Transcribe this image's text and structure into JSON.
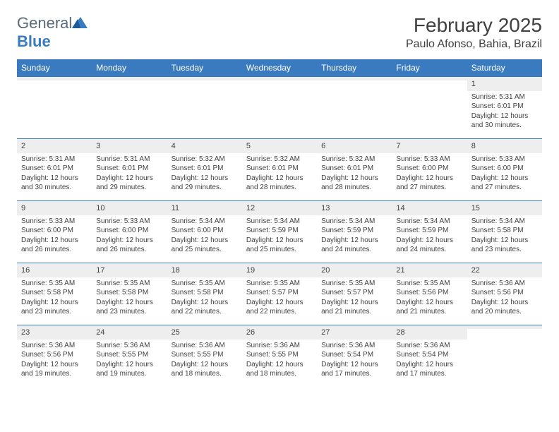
{
  "logo": {
    "text_general": "General",
    "text_blue": "Blue"
  },
  "header": {
    "title": "February 2025",
    "location": "Paulo Afonso, Bahia, Brazil"
  },
  "colors": {
    "brand_blue": "#3a7bbf",
    "header_text": "#ffffff",
    "daynum_bg": "#eeeeee",
    "text": "#404040",
    "logo_gray": "#5a6b7a",
    "background": "#ffffff"
  },
  "fonts": {
    "title_size": 28,
    "location_size": 16,
    "header_size": 12,
    "daynum_size": 11,
    "body_size": 10
  },
  "day_headers": [
    "Sunday",
    "Monday",
    "Tuesday",
    "Wednesday",
    "Thursday",
    "Friday",
    "Saturday"
  ],
  "weeks": [
    [
      {
        "n": "",
        "sr": "",
        "ss": "",
        "dl": ""
      },
      {
        "n": "",
        "sr": "",
        "ss": "",
        "dl": ""
      },
      {
        "n": "",
        "sr": "",
        "ss": "",
        "dl": ""
      },
      {
        "n": "",
        "sr": "",
        "ss": "",
        "dl": ""
      },
      {
        "n": "",
        "sr": "",
        "ss": "",
        "dl": ""
      },
      {
        "n": "",
        "sr": "",
        "ss": "",
        "dl": ""
      },
      {
        "n": "1",
        "sr": "Sunrise: 5:31 AM",
        "ss": "Sunset: 6:01 PM",
        "dl": "Daylight: 12 hours and 30 minutes."
      }
    ],
    [
      {
        "n": "2",
        "sr": "Sunrise: 5:31 AM",
        "ss": "Sunset: 6:01 PM",
        "dl": "Daylight: 12 hours and 30 minutes."
      },
      {
        "n": "3",
        "sr": "Sunrise: 5:31 AM",
        "ss": "Sunset: 6:01 PM",
        "dl": "Daylight: 12 hours and 29 minutes."
      },
      {
        "n": "4",
        "sr": "Sunrise: 5:32 AM",
        "ss": "Sunset: 6:01 PM",
        "dl": "Daylight: 12 hours and 29 minutes."
      },
      {
        "n": "5",
        "sr": "Sunrise: 5:32 AM",
        "ss": "Sunset: 6:01 PM",
        "dl": "Daylight: 12 hours and 28 minutes."
      },
      {
        "n": "6",
        "sr": "Sunrise: 5:32 AM",
        "ss": "Sunset: 6:01 PM",
        "dl": "Daylight: 12 hours and 28 minutes."
      },
      {
        "n": "7",
        "sr": "Sunrise: 5:33 AM",
        "ss": "Sunset: 6:00 PM",
        "dl": "Daylight: 12 hours and 27 minutes."
      },
      {
        "n": "8",
        "sr": "Sunrise: 5:33 AM",
        "ss": "Sunset: 6:00 PM",
        "dl": "Daylight: 12 hours and 27 minutes."
      }
    ],
    [
      {
        "n": "9",
        "sr": "Sunrise: 5:33 AM",
        "ss": "Sunset: 6:00 PM",
        "dl": "Daylight: 12 hours and 26 minutes."
      },
      {
        "n": "10",
        "sr": "Sunrise: 5:33 AM",
        "ss": "Sunset: 6:00 PM",
        "dl": "Daylight: 12 hours and 26 minutes."
      },
      {
        "n": "11",
        "sr": "Sunrise: 5:34 AM",
        "ss": "Sunset: 6:00 PM",
        "dl": "Daylight: 12 hours and 25 minutes."
      },
      {
        "n": "12",
        "sr": "Sunrise: 5:34 AM",
        "ss": "Sunset: 5:59 PM",
        "dl": "Daylight: 12 hours and 25 minutes."
      },
      {
        "n": "13",
        "sr": "Sunrise: 5:34 AM",
        "ss": "Sunset: 5:59 PM",
        "dl": "Daylight: 12 hours and 24 minutes."
      },
      {
        "n": "14",
        "sr": "Sunrise: 5:34 AM",
        "ss": "Sunset: 5:59 PM",
        "dl": "Daylight: 12 hours and 24 minutes."
      },
      {
        "n": "15",
        "sr": "Sunrise: 5:34 AM",
        "ss": "Sunset: 5:58 PM",
        "dl": "Daylight: 12 hours and 23 minutes."
      }
    ],
    [
      {
        "n": "16",
        "sr": "Sunrise: 5:35 AM",
        "ss": "Sunset: 5:58 PM",
        "dl": "Daylight: 12 hours and 23 minutes."
      },
      {
        "n": "17",
        "sr": "Sunrise: 5:35 AM",
        "ss": "Sunset: 5:58 PM",
        "dl": "Daylight: 12 hours and 23 minutes."
      },
      {
        "n": "18",
        "sr": "Sunrise: 5:35 AM",
        "ss": "Sunset: 5:58 PM",
        "dl": "Daylight: 12 hours and 22 minutes."
      },
      {
        "n": "19",
        "sr": "Sunrise: 5:35 AM",
        "ss": "Sunset: 5:57 PM",
        "dl": "Daylight: 12 hours and 22 minutes."
      },
      {
        "n": "20",
        "sr": "Sunrise: 5:35 AM",
        "ss": "Sunset: 5:57 PM",
        "dl": "Daylight: 12 hours and 21 minutes."
      },
      {
        "n": "21",
        "sr": "Sunrise: 5:35 AM",
        "ss": "Sunset: 5:56 PM",
        "dl": "Daylight: 12 hours and 21 minutes."
      },
      {
        "n": "22",
        "sr": "Sunrise: 5:36 AM",
        "ss": "Sunset: 5:56 PM",
        "dl": "Daylight: 12 hours and 20 minutes."
      }
    ],
    [
      {
        "n": "23",
        "sr": "Sunrise: 5:36 AM",
        "ss": "Sunset: 5:56 PM",
        "dl": "Daylight: 12 hours and 19 minutes."
      },
      {
        "n": "24",
        "sr": "Sunrise: 5:36 AM",
        "ss": "Sunset: 5:55 PM",
        "dl": "Daylight: 12 hours and 19 minutes."
      },
      {
        "n": "25",
        "sr": "Sunrise: 5:36 AM",
        "ss": "Sunset: 5:55 PM",
        "dl": "Daylight: 12 hours and 18 minutes."
      },
      {
        "n": "26",
        "sr": "Sunrise: 5:36 AM",
        "ss": "Sunset: 5:55 PM",
        "dl": "Daylight: 12 hours and 18 minutes."
      },
      {
        "n": "27",
        "sr": "Sunrise: 5:36 AM",
        "ss": "Sunset: 5:54 PM",
        "dl": "Daylight: 12 hours and 17 minutes."
      },
      {
        "n": "28",
        "sr": "Sunrise: 5:36 AM",
        "ss": "Sunset: 5:54 PM",
        "dl": "Daylight: 12 hours and 17 minutes."
      },
      {
        "n": "",
        "sr": "",
        "ss": "",
        "dl": ""
      }
    ]
  ]
}
